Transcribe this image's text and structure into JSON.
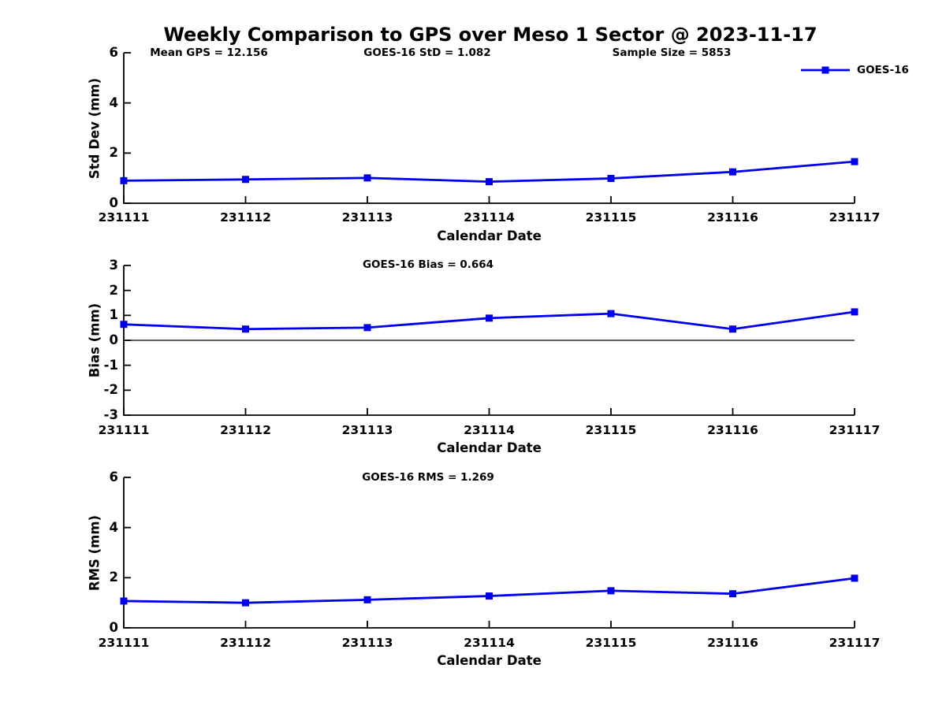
{
  "title": "Weekly Comparison to GPS over Meso 1 Sector @ 2023-11-17",
  "colors": {
    "series": "#0000EE",
    "axis": "#000000",
    "text": "#000000",
    "background": "#FFFFFF"
  },
  "legend": {
    "label": "GOES-16",
    "position": "top-right"
  },
  "chart_data": [
    {
      "type": "line",
      "name": "std-dev",
      "annotations": [
        "Mean GPS = 12.156",
        "GOES-16 StD = 1.082",
        "Sample Size = 5853"
      ],
      "xlabel": "Calendar Date",
      "ylabel": "Std Dev (mm)",
      "x": [
        "231111",
        "231112",
        "231113",
        "231114",
        "231115",
        "231116",
        "231117"
      ],
      "series": [
        {
          "name": "GOES-16",
          "values": [
            0.9,
            0.95,
            1.01,
            0.86,
            0.99,
            1.25,
            1.66
          ]
        }
      ],
      "ylim": [
        0,
        6
      ],
      "yticks": [
        0,
        2,
        4,
        6
      ],
      "grid": false,
      "legend_shown": true
    },
    {
      "type": "line",
      "name": "bias",
      "title": "GOES-16 Bias  = 0.664",
      "xlabel": "Calendar Date",
      "ylabel": "Bias (mm)",
      "x": [
        "231111",
        "231112",
        "231113",
        "231114",
        "231115",
        "231116",
        "231117"
      ],
      "series": [
        {
          "name": "GOES-16",
          "values": [
            0.64,
            0.45,
            0.51,
            0.89,
            1.07,
            0.45,
            1.14
          ]
        }
      ],
      "ylim": [
        -3,
        3
      ],
      "yticks": [
        -3,
        -2,
        -1,
        0,
        1,
        2,
        3
      ],
      "zero_line": true,
      "grid": false,
      "legend_shown": false
    },
    {
      "type": "line",
      "name": "rms",
      "title": "GOES-16 RMS = 1.269",
      "xlabel": "Calendar Date",
      "ylabel": "RMS (mm)",
      "x": [
        "231111",
        "231112",
        "231113",
        "231114",
        "231115",
        "231116",
        "231117"
      ],
      "series": [
        {
          "name": "GOES-16",
          "values": [
            1.07,
            1.0,
            1.12,
            1.27,
            1.48,
            1.36,
            1.98
          ]
        }
      ],
      "ylim": [
        0,
        6
      ],
      "yticks": [
        0,
        2,
        4,
        6
      ],
      "grid": false,
      "legend_shown": false
    }
  ]
}
